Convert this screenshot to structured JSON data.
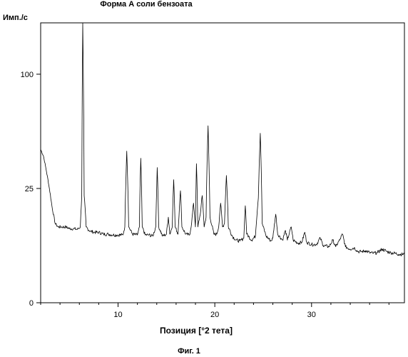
{
  "chart_data": {
    "type": "line",
    "title": "Форма А соли бензоата",
    "ylabel": "Имп./с",
    "xlabel": "Позиция [°2 тета]",
    "caption": "Фиг. 1",
    "x_ticks": [
      10,
      20,
      30
    ],
    "y_ticks": [
      0,
      25,
      100
    ],
    "y_scale": "sqrt",
    "xlim": [
      2,
      39.6
    ],
    "ylim": [
      0,
      150
    ],
    "grid": false,
    "series": [
      {
        "values": [
          [
            2,
            45
          ],
          [
            2.3,
            41
          ],
          [
            2.6,
            33
          ],
          [
            2.9,
            25
          ],
          [
            3.2,
            17
          ],
          [
            3.5,
            12
          ],
          [
            3.8,
            11
          ],
          [
            4.2,
            11
          ],
          [
            4.6,
            11
          ],
          [
            5,
            10.5
          ],
          [
            5.4,
            10.5
          ],
          [
            5.8,
            10.3
          ],
          [
            6.1,
            11
          ],
          [
            6.25,
            22
          ],
          [
            6.35,
            150
          ],
          [
            6.5,
            22
          ],
          [
            6.7,
            11
          ],
          [
            7,
            10
          ],
          [
            7.5,
            9.5
          ],
          [
            8,
            9.5
          ],
          [
            8.5,
            9
          ],
          [
            9,
            9
          ],
          [
            9.5,
            8.8
          ],
          [
            10,
            8.8
          ],
          [
            10.5,
            8.8
          ],
          [
            10.7,
            11
          ],
          [
            10.9,
            44
          ],
          [
            11.1,
            11
          ],
          [
            11.5,
            9
          ],
          [
            12,
            8.8
          ],
          [
            12.2,
            11
          ],
          [
            12.35,
            40
          ],
          [
            12.5,
            11
          ],
          [
            12.8,
            8.8
          ],
          [
            13.2,
            8.8
          ],
          [
            13.6,
            8.5
          ],
          [
            13.9,
            11
          ],
          [
            14.05,
            35
          ],
          [
            14.2,
            11
          ],
          [
            14.6,
            8.5
          ],
          [
            15,
            9
          ],
          [
            15.2,
            14
          ],
          [
            15.35,
            9
          ],
          [
            15.6,
            11
          ],
          [
            15.75,
            29
          ],
          [
            15.9,
            11
          ],
          [
            16.2,
            9
          ],
          [
            16.45,
            24
          ],
          [
            16.6,
            11
          ],
          [
            17,
            9
          ],
          [
            17.4,
            8.8
          ],
          [
            17.6,
            12
          ],
          [
            17.8,
            19
          ],
          [
            18,
            11
          ],
          [
            18.1,
            37
          ],
          [
            18.25,
            11
          ],
          [
            18.5,
            15
          ],
          [
            18.7,
            22
          ],
          [
            18.9,
            11
          ],
          [
            19.1,
            14
          ],
          [
            19.3,
            60
          ],
          [
            19.5,
            14
          ],
          [
            19.9,
            9
          ],
          [
            20.2,
            9
          ],
          [
            20.4,
            11
          ],
          [
            20.6,
            19
          ],
          [
            20.8,
            11
          ],
          [
            21,
            12
          ],
          [
            21.2,
            31
          ],
          [
            21.4,
            11
          ],
          [
            21.8,
            8.5
          ],
          [
            22.2,
            7.5
          ],
          [
            22.6,
            7.3
          ],
          [
            23,
            8
          ],
          [
            23.15,
            18
          ],
          [
            23.3,
            9
          ],
          [
            23.8,
            7.5
          ],
          [
            24.2,
            8.5
          ],
          [
            24.5,
            21
          ],
          [
            24.7,
            55
          ],
          [
            24.9,
            12
          ],
          [
            25.3,
            8.5
          ],
          [
            25.8,
            7.3
          ],
          [
            26,
            8
          ],
          [
            26.3,
            15
          ],
          [
            26.5,
            9
          ],
          [
            27,
            7.5
          ],
          [
            27.3,
            10
          ],
          [
            27.5,
            7.5
          ],
          [
            27.9,
            11
          ],
          [
            28.1,
            7.5
          ],
          [
            28.6,
            6.8
          ],
          [
            29,
            7
          ],
          [
            29.3,
            9.5
          ],
          [
            29.5,
            7
          ],
          [
            30,
            6.5
          ],
          [
            30.5,
            6.5
          ],
          [
            30.9,
            8
          ],
          [
            31.2,
            6.3
          ],
          [
            31.8,
            6
          ],
          [
            32.2,
            7.5
          ],
          [
            32.5,
            6
          ],
          [
            32.9,
            7.5
          ],
          [
            33.2,
            9
          ],
          [
            33.5,
            6
          ],
          [
            34,
            5.5
          ],
          [
            34.4,
            5.8
          ],
          [
            34.8,
            5
          ],
          [
            35.2,
            5
          ],
          [
            35.6,
            5.2
          ],
          [
            36,
            4.8
          ],
          [
            36.4,
            4.7
          ],
          [
            36.8,
            4.8
          ],
          [
            37.3,
            5.5
          ],
          [
            37.8,
            5
          ],
          [
            38.2,
            4.8
          ],
          [
            38.6,
            4.7
          ],
          [
            39,
            4.5
          ],
          [
            39.6,
            4.5
          ]
        ]
      }
    ]
  }
}
